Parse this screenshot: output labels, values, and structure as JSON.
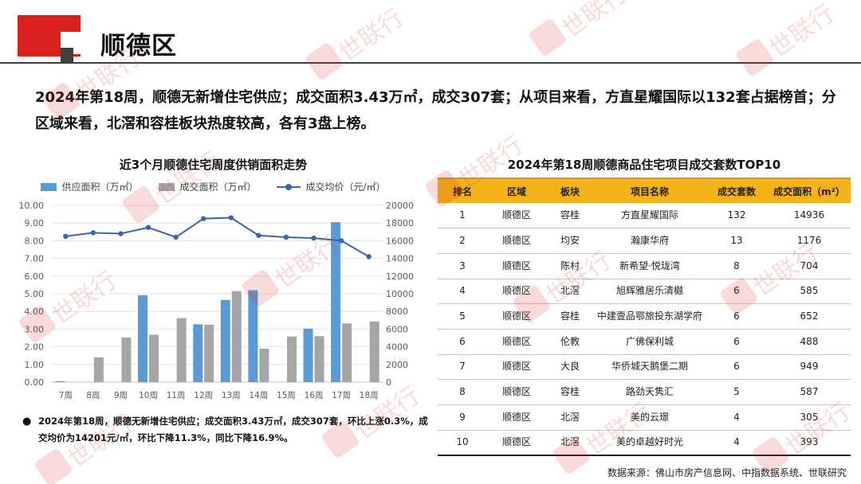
{
  "header": {
    "title": "顺德区"
  },
  "summary": "2024年第18周，顺德无新增住宅供应；成交面积3.43万㎡，成交307套；从项目来看，方直星耀国际以132套占据榜首；分区域来看，北滘和容桂板块热度较高，各有3盘上榜。",
  "chart_data": {
    "type": "bar",
    "title": "近3个月顺德住宅周度供销面积走势",
    "categories": [
      "7周",
      "8周",
      "9周",
      "10周",
      "11周",
      "12周",
      "13周",
      "14周",
      "15周",
      "16周",
      "17周",
      "18周"
    ],
    "series": [
      {
        "name": "供应面积（万㎡）",
        "type": "bar",
        "axis": "left",
        "color": "#5b9bd5",
        "values": [
          0.05,
          0,
          0,
          4.92,
          0,
          3.27,
          4.65,
          5.2,
          0,
          3.03,
          9.05,
          0
        ]
      },
      {
        "name": "成交面积（万㎡）",
        "type": "bar",
        "axis": "left",
        "color": "#a5a5a5",
        "values": [
          0,
          1.4,
          2.52,
          2.68,
          3.62,
          3.25,
          5.15,
          1.9,
          2.58,
          2.6,
          3.32,
          3.43
        ]
      },
      {
        "name": "成交均价（元/㎡）",
        "type": "line",
        "axis": "right",
        "color": "#3c64ad",
        "values": [
          16500,
          16900,
          16800,
          17500,
          16400,
          18500,
          18600,
          16600,
          16400,
          16300,
          16000,
          14201
        ]
      }
    ],
    "ylim_left": [
      0,
      10
    ],
    "yticks_left": [
      "0.00",
      "1.00",
      "2.00",
      "3.00",
      "4.00",
      "5.00",
      "6.00",
      "7.00",
      "8.00",
      "9.00",
      "10.00"
    ],
    "ylim_right": [
      0,
      20000
    ],
    "yticks_right": [
      "0",
      "2000",
      "4000",
      "6000",
      "8000",
      "10000",
      "12000",
      "14000",
      "16000",
      "18000",
      "20000"
    ],
    "grid": true,
    "legend": "top"
  },
  "chart_note": "2024年第18周，顺德无新增住宅供应；成交面积3.43万㎡，成交307套，环比上涨0.3%，成交均价为14201元/㎡，环比下降11.3%，同比下降16.9%。",
  "table": {
    "title": "2024年第18周顺德商品住宅项目成交套数TOP10",
    "headers": [
      "排名",
      "区域",
      "板块",
      "项目名称",
      "成交套数",
      "成交面积（m²）"
    ],
    "rows": [
      [
        "1",
        "顺德区",
        "容桂",
        "方直星耀国际",
        "132",
        "14936"
      ],
      [
        "2",
        "顺德区",
        "均安",
        "瀚康华府",
        "13",
        "1176"
      ],
      [
        "3",
        "顺德区",
        "陈村",
        "新希望·悦珑湾",
        "8",
        "704"
      ],
      [
        "4",
        "顺德区",
        "北滘",
        "旭辉雅居乐清樾",
        "6",
        "585"
      ],
      [
        "5",
        "顺德区",
        "容桂",
        "中建壹品鄂旅投东湖学府",
        "6",
        "652"
      ],
      [
        "6",
        "顺德区",
        "伦教",
        "广佛保利城",
        "6",
        "488"
      ],
      [
        "7",
        "顺德区",
        "大良",
        "华侨城天鹅堡二期",
        "6",
        "949"
      ],
      [
        "8",
        "顺德区",
        "容桂",
        "路劲天隽汇",
        "5",
        "587"
      ],
      [
        "9",
        "顺德区",
        "北滘",
        "美的云璟",
        "4",
        "305"
      ],
      [
        "10",
        "顺德区",
        "北滘",
        "美的卓越好时光",
        "4",
        "393"
      ]
    ]
  },
  "source": "数据来源：佛山市房产信息网、中指数据系统、世联研究",
  "watermark": {
    "text": "世联行",
    "icon": "shilian-logo-icon",
    "color": "#d8201c"
  },
  "colors": {
    "brand_red": "#d8201c",
    "table_header": "#f3b21a"
  }
}
